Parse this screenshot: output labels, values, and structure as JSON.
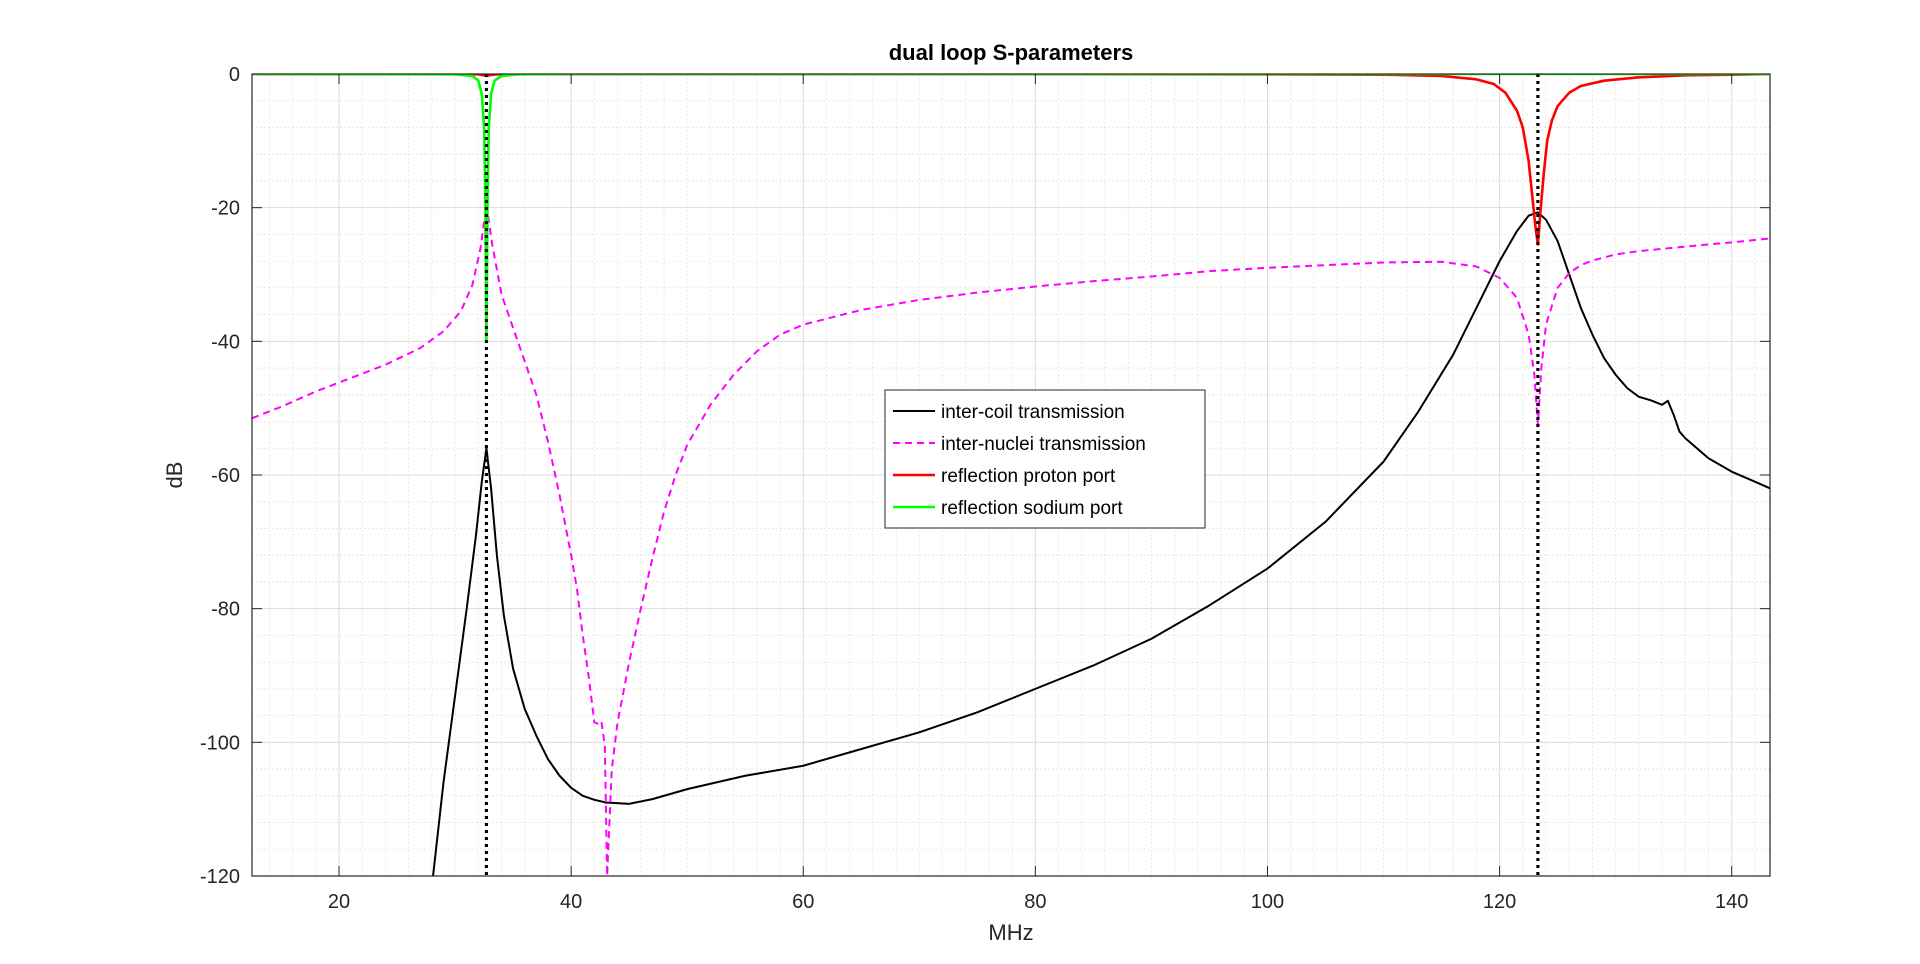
{
  "chart_data": {
    "type": "line",
    "title": "dual loop S-parameters",
    "xlabel": "MHz",
    "ylabel": "dB",
    "xlim": [
      12.5,
      143.3
    ],
    "ylim": [
      -120,
      0
    ],
    "xticks": [
      20,
      40,
      60,
      80,
      100,
      120,
      140
    ],
    "yticks": [
      0,
      -20,
      -40,
      -60,
      -80,
      -100,
      -120
    ],
    "xminor_step": 2,
    "yminor_step": 4,
    "grid": true,
    "minor_grid": true,
    "legend_location": "center",
    "vlines": [
      {
        "x": 32.7,
        "style": "dotted",
        "color": "#000000"
      },
      {
        "x": 123.3,
        "style": "dotted",
        "color": "#000000"
      }
    ],
    "series": [
      {
        "name": "inter-coil transmission",
        "color": "#000000",
        "style": "solid",
        "x": [
          28.1,
          29,
          30,
          31,
          31.8,
          32.3,
          32.7,
          33.1,
          33.6,
          34.2,
          35,
          36,
          37,
          38,
          39,
          40,
          41,
          42,
          43,
          45,
          47,
          50,
          55,
          60,
          65,
          70,
          75,
          80,
          85,
          90,
          95,
          100,
          105,
          110,
          113,
          116,
          118,
          120,
          121.5,
          122.5,
          123.3,
          124,
          125,
          126,
          127,
          128,
          129,
          130,
          131,
          132,
          133,
          134,
          134.5,
          135,
          135.5,
          136,
          137,
          138,
          140,
          142,
          143.3
        ],
        "y": [
          -120,
          -106,
          -93,
          -80,
          -69,
          -61,
          -56,
          -62,
          -72,
          -81,
          -89,
          -95,
          -99,
          -102.5,
          -105,
          -106.8,
          -108,
          -108.6,
          -109,
          -109.2,
          -108.5,
          -107,
          -105,
          -103.5,
          -101,
          -98.5,
          -95.5,
          -92,
          -88.5,
          -84.5,
          -79.5,
          -74,
          -67,
          -58,
          -50.5,
          -42,
          -35,
          -28,
          -23.5,
          -21.2,
          -20.7,
          -21.8,
          -25,
          -30,
          -35,
          -39,
          -42.5,
          -45,
          -47,
          -48.3,
          -48.8,
          -49.5,
          -48.9,
          -51,
          -53.5,
          -54.5,
          -56,
          -57.5,
          -59.5,
          -61,
          -62
        ]
      },
      {
        "name": "inter-nuclei transmission",
        "color": "#ff00ff",
        "style": "dashed",
        "x": [
          12.5,
          15,
          18,
          21,
          24,
          27,
          29,
          30.5,
          31.5,
          32.2,
          32.7,
          33.2,
          34,
          35,
          36,
          37,
          38,
          39,
          40,
          40.5,
          41,
          41.5,
          42,
          42.3,
          42.6,
          42.9,
          43.1,
          43.5,
          44,
          45,
          46,
          47,
          48,
          49,
          50,
          52,
          54,
          56,
          58,
          60,
          65,
          70,
          75,
          80,
          85,
          90,
          95,
          100,
          105,
          110,
          115,
          118,
          120,
          121.5,
          122.5,
          123,
          123.3,
          123.6,
          124,
          125,
          126,
          127,
          128,
          130,
          132,
          135,
          138,
          140,
          143.3
        ],
        "y": [
          -51.5,
          -49.8,
          -47.5,
          -45.5,
          -43.5,
          -41,
          -38.5,
          -35.5,
          -31.5,
          -26,
          -19.5,
          -25.5,
          -33,
          -38,
          -43,
          -48,
          -55,
          -63,
          -72,
          -77,
          -84,
          -90,
          -97,
          -97.2,
          -96.8,
          -100.5,
          -120,
          -104,
          -97,
          -88,
          -80,
          -72.5,
          -65.5,
          -60,
          -55.5,
          -49.5,
          -45,
          -41.5,
          -39,
          -37.5,
          -35.3,
          -33.8,
          -32.7,
          -31.8,
          -31,
          -30.3,
          -29.5,
          -29,
          -28.6,
          -28.2,
          -28.1,
          -28.8,
          -30.5,
          -33.5,
          -39,
          -45,
          -52.5,
          -44,
          -37.5,
          -32,
          -29.8,
          -28.6,
          -27.9,
          -27,
          -26.5,
          -26,
          -25.5,
          -25.2,
          -24.6
        ]
      },
      {
        "name": "reflection proton port",
        "color": "#ff0000",
        "style": "solid",
        "x": [
          12.5,
          30,
          32,
          32.5,
          32.7,
          32.9,
          33.5,
          40,
          60,
          80,
          100,
          110,
          115,
          118,
          119.5,
          120.5,
          121.5,
          122,
          122.5,
          122.8,
          123.1,
          123.3,
          123.5,
          123.8,
          124.1,
          124.5,
          125,
          126,
          127,
          129,
          132,
          136,
          140,
          143.3
        ],
        "y": [
          0,
          0,
          -0.05,
          -0.2,
          -0.3,
          -0.2,
          -0.05,
          0,
          0,
          0,
          -0.05,
          -0.1,
          -0.3,
          -0.8,
          -1.5,
          -2.8,
          -5.5,
          -8,
          -13,
          -18,
          -23,
          -25.5,
          -21,
          -15,
          -10,
          -7,
          -4.8,
          -2.8,
          -1.8,
          -1,
          -0.5,
          -0.2,
          -0.1,
          0
        ]
      },
      {
        "name": "reflection sodium port",
        "color": "#00ff00",
        "style": "solid",
        "x": [
          12.5,
          30,
          31.5,
          32,
          32.3,
          32.5,
          32.6,
          32.7,
          32.8,
          32.9,
          33.1,
          33.4,
          34,
          35.5,
          40,
          60,
          100,
          143.3
        ],
        "y": [
          0,
          -0.05,
          -0.3,
          -1,
          -3,
          -8,
          -18,
          -40,
          -18,
          -8,
          -3,
          -1,
          -0.3,
          -0.05,
          0,
          0,
          0,
          0
        ]
      }
    ]
  }
}
